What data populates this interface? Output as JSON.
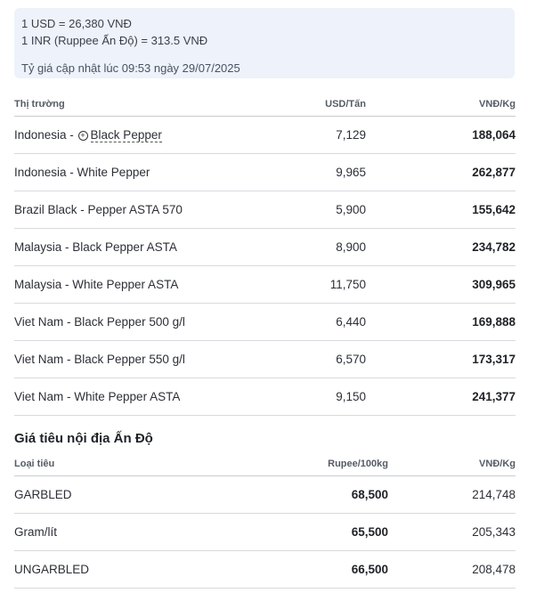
{
  "rates": {
    "usd": "1 USD = 26,380 VNĐ",
    "inr": "1 INR (Ruppee Ấn Độ) = 313.5 VNĐ",
    "updated": "Tỷ giá cập nhật lúc 09:53 ngày 29/07/2025"
  },
  "market_table": {
    "headers": [
      "Thị trường",
      "USD/Tấn",
      "VNĐ/Kg"
    ],
    "rows": [
      {
        "market_prefix": "Indonesia - ",
        "market_link": "Black Pepper",
        "usd": "7,129",
        "vnd": "188,064"
      },
      {
        "market": "Indonesia - White Pepper",
        "usd": "9,965",
        "vnd": "262,877"
      },
      {
        "market": "Brazil Black - Pepper ASTA 570",
        "usd": "5,900",
        "vnd": "155,642"
      },
      {
        "market": "Malaysia - Black Pepper ASTA",
        "usd": "8,900",
        "vnd": "234,782"
      },
      {
        "market": "Malaysia - White Pepper ASTA",
        "usd": "11,750",
        "vnd": "309,965"
      },
      {
        "market": "Viet Nam - Black Pepper 500 g/l",
        "usd": "6,440",
        "vnd": "169,888"
      },
      {
        "market": "Viet Nam - Black Pepper 550 g/l",
        "usd": "6,570",
        "vnd": "173,317"
      },
      {
        "market": "Viet Nam - White Pepper ASTA",
        "usd": "9,150",
        "vnd": "241,377"
      }
    ]
  },
  "india": {
    "title": "Giá tiêu nội địa Ấn Độ",
    "headers": [
      "Loại tiêu",
      "Rupee/100kg",
      "VNĐ/Kg"
    ],
    "rows": [
      {
        "type": "GARBLED",
        "rupee": "68,500",
        "vnd": "214,748"
      },
      {
        "type": "Gram/lít",
        "rupee": "65,500",
        "vnd": "205,343"
      },
      {
        "type": "UNGARBLED",
        "rupee": "66,500",
        "vnd": "208,478"
      }
    ]
  }
}
